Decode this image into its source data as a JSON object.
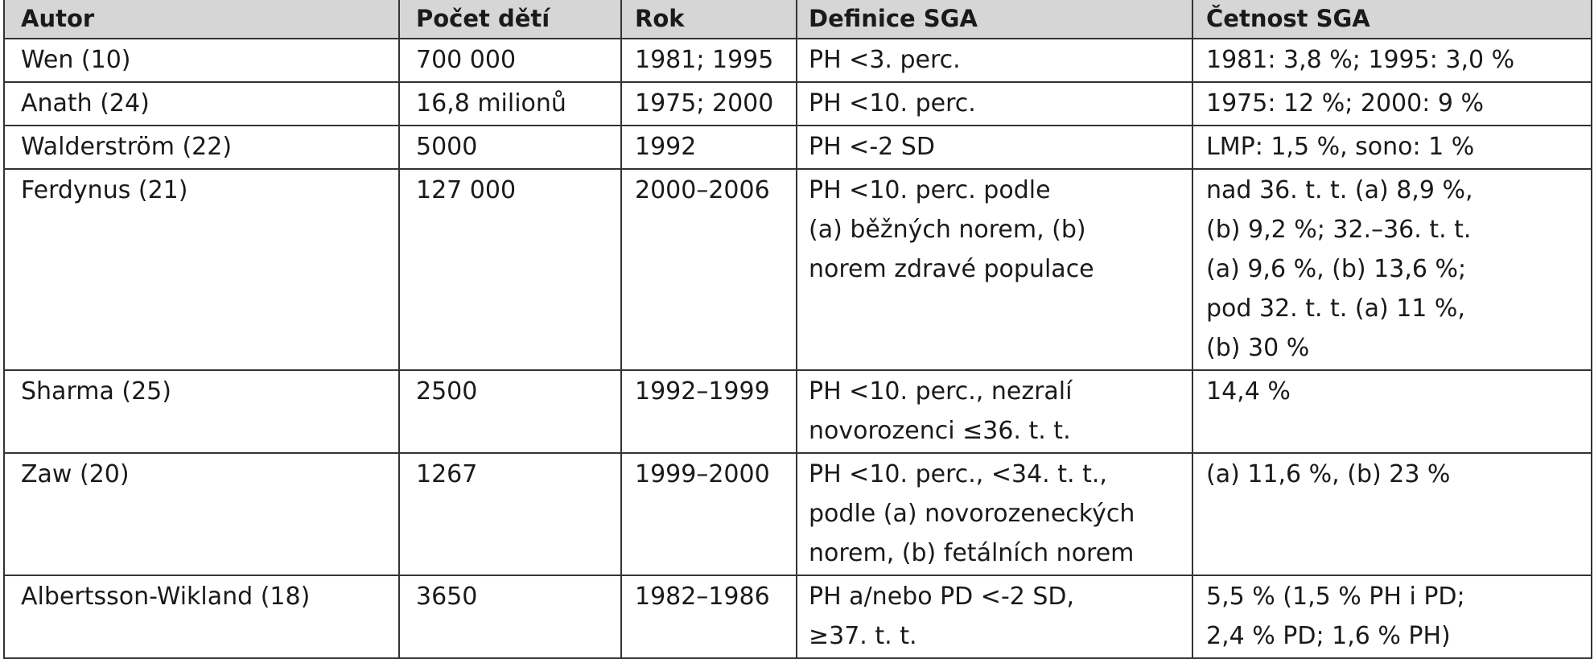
{
  "table": {
    "headers": [
      "Autor",
      "Počet dětí",
      "Rok",
      "Definice SGA",
      "Četnost SGA"
    ],
    "rows": [
      {
        "author": "Wen (10)",
        "count": "700 000",
        "year": "1981; 1995",
        "definition": [
          "PH <3. perc."
        ],
        "frequency": [
          "1981: 3,8 %; 1995: 3,0 %"
        ]
      },
      {
        "author": "Anath (24)",
        "count": "16,8 milionů",
        "year": "1975; 2000",
        "definition": [
          "PH <10. perc."
        ],
        "frequency": [
          "1975: 12 %; 2000: 9 %"
        ]
      },
      {
        "author": "Walderström (22)",
        "count": "5000",
        "year": "1992",
        "definition": [
          "PH <-2 SD"
        ],
        "frequency": [
          "LMP: 1,5 %, sono: 1 %"
        ]
      },
      {
        "author": "Ferdynus (21)",
        "count": "127 000",
        "year": "2000–2006",
        "definition": [
          "PH <10. perc. podle",
          "(a) běžných norem, (b)",
          "norem zdravé populace"
        ],
        "frequency": [
          "nad 36. t. t. (a) 8,9 %,",
          "(b) 9,2 %; 32.–36. t. t.",
          "(a) 9,6 %, (b) 13,6 %;",
          "pod 32. t. t. (a) 11 %,",
          "(b) 30 %"
        ]
      },
      {
        "author": "Sharma (25)",
        "count": "2500",
        "year": "1992–1999",
        "definition": [
          "PH <10. perc., nezralí",
          "novorozenci ≤36. t. t."
        ],
        "frequency": [
          "14,4 %"
        ]
      },
      {
        "author": "Zaw (20)",
        "count": "1267",
        "year": "1999–2000",
        "definition": [
          "PH <10. perc., <34. t. t.,",
          "podle (a) novorozeneckých",
          "norem, (b) fetálních norem"
        ],
        "frequency": [
          "(a) 11,6 %, (b) 23 %"
        ]
      },
      {
        "author": "Albertsson-Wikland (18)",
        "count": "3650",
        "year": "1982–1986",
        "definition": [
          "PH a/nebo PD <-2 SD,",
          "≥37. t. t."
        ],
        "frequency": [
          "5,5 % (1,5 % PH i PD;",
          "2,4 % PD; 1,6 % PH)"
        ]
      }
    ]
  }
}
